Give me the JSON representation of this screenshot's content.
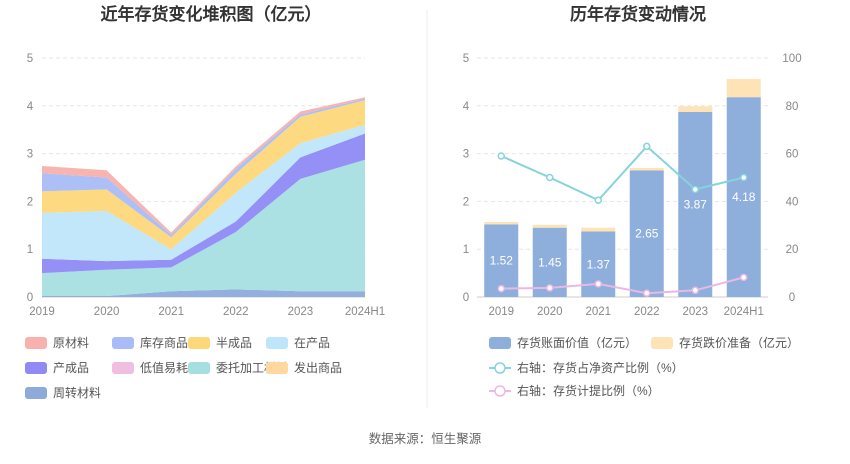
{
  "source": "数据来源：恒生聚源",
  "chart_data": [
    {
      "type": "area",
      "stacked": true,
      "title": "近年存货变化堆积图（亿元）",
      "x": [
        "2019",
        "2020",
        "2021",
        "2022",
        "2023",
        "2024H1"
      ],
      "ylim": [
        0,
        5
      ],
      "yticks": [
        "0",
        "1",
        "2",
        "3",
        "4",
        "5"
      ],
      "series": [
        {
          "name": "周转材料",
          "color": "#8eaadb",
          "values": [
            0.02,
            0.02,
            0.12,
            0.16,
            0.12,
            0.12
          ]
        },
        {
          "name": "委托加工材料",
          "color": "#a7dfe0",
          "values": [
            0.48,
            0.55,
            0.5,
            1.2,
            2.35,
            2.75
          ]
        },
        {
          "name": "发出商品",
          "color": "#fdd9a0",
          "values": [
            0.0,
            0.0,
            0.0,
            0.0,
            0.0,
            0.0
          ]
        },
        {
          "name": "低值易耗品",
          "color": "#eebfdf",
          "values": [
            0.0,
            0.0,
            0.0,
            0.0,
            0.0,
            0.0
          ]
        },
        {
          "name": "产成品",
          "color": "#8f8af5",
          "values": [
            0.3,
            0.18,
            0.16,
            0.22,
            0.45,
            0.55
          ]
        },
        {
          "name": "在产品",
          "color": "#bfe5fa",
          "values": [
            0.96,
            1.05,
            0.22,
            0.6,
            0.3,
            0.18
          ]
        },
        {
          "name": "半成品",
          "color": "#fdd87a",
          "values": [
            0.45,
            0.45,
            0.25,
            0.4,
            0.55,
            0.52
          ]
        },
        {
          "name": "库存商品",
          "color": "#a9bcf7",
          "values": [
            0.38,
            0.25,
            0.05,
            0.1,
            0.05,
            0.03
          ]
        },
        {
          "name": "原材料",
          "color": "#f8b1ac",
          "values": [
            0.15,
            0.15,
            0.05,
            0.05,
            0.06,
            0.03
          ]
        }
      ],
      "legend": [
        "原材料",
        "库存商品",
        "半成品",
        "在产品",
        "产成品",
        "低值易耗品",
        "委托加工材料",
        "发出商品",
        "周转材料"
      ]
    },
    {
      "type": "bar",
      "stacked": true,
      "title": "历年存货变动情况",
      "categories": [
        "2019",
        "2020",
        "2021",
        "2022",
        "2023",
        "2024H1"
      ],
      "ylim": [
        0,
        5
      ],
      "y2lim": [
        0,
        100
      ],
      "yticks": [
        "0",
        "1",
        "2",
        "3",
        "4",
        "5"
      ],
      "y2ticks": [
        "0",
        "20",
        "40",
        "60",
        "80",
        "100"
      ],
      "series": [
        {
          "name": "存货账面价值（亿元）",
          "color": "#8eaedb",
          "values": [
            1.52,
            1.45,
            1.37,
            2.65,
            3.87,
            4.18
          ],
          "labels": [
            "1.52",
            "1.45",
            "1.37",
            "2.65",
            "3.87",
            "4.18"
          ]
        },
        {
          "name": "存货跌价准备（亿元）",
          "color": "#fde3b6",
          "values": [
            0.05,
            0.06,
            0.08,
            0.05,
            0.12,
            0.38
          ]
        }
      ],
      "lines": [
        {
          "name": "右轴：存货占净资产比例（%）",
          "color": "#86d3dc",
          "axis": "right",
          "values": [
            59,
            50,
            40.5,
            63,
            45,
            50
          ]
        },
        {
          "name": "右轴：存货计提比例（%）",
          "color": "#eab8e3",
          "axis": "right",
          "values": [
            3.5,
            3.8,
            5.5,
            1.6,
            2.8,
            8.2
          ]
        }
      ]
    }
  ]
}
